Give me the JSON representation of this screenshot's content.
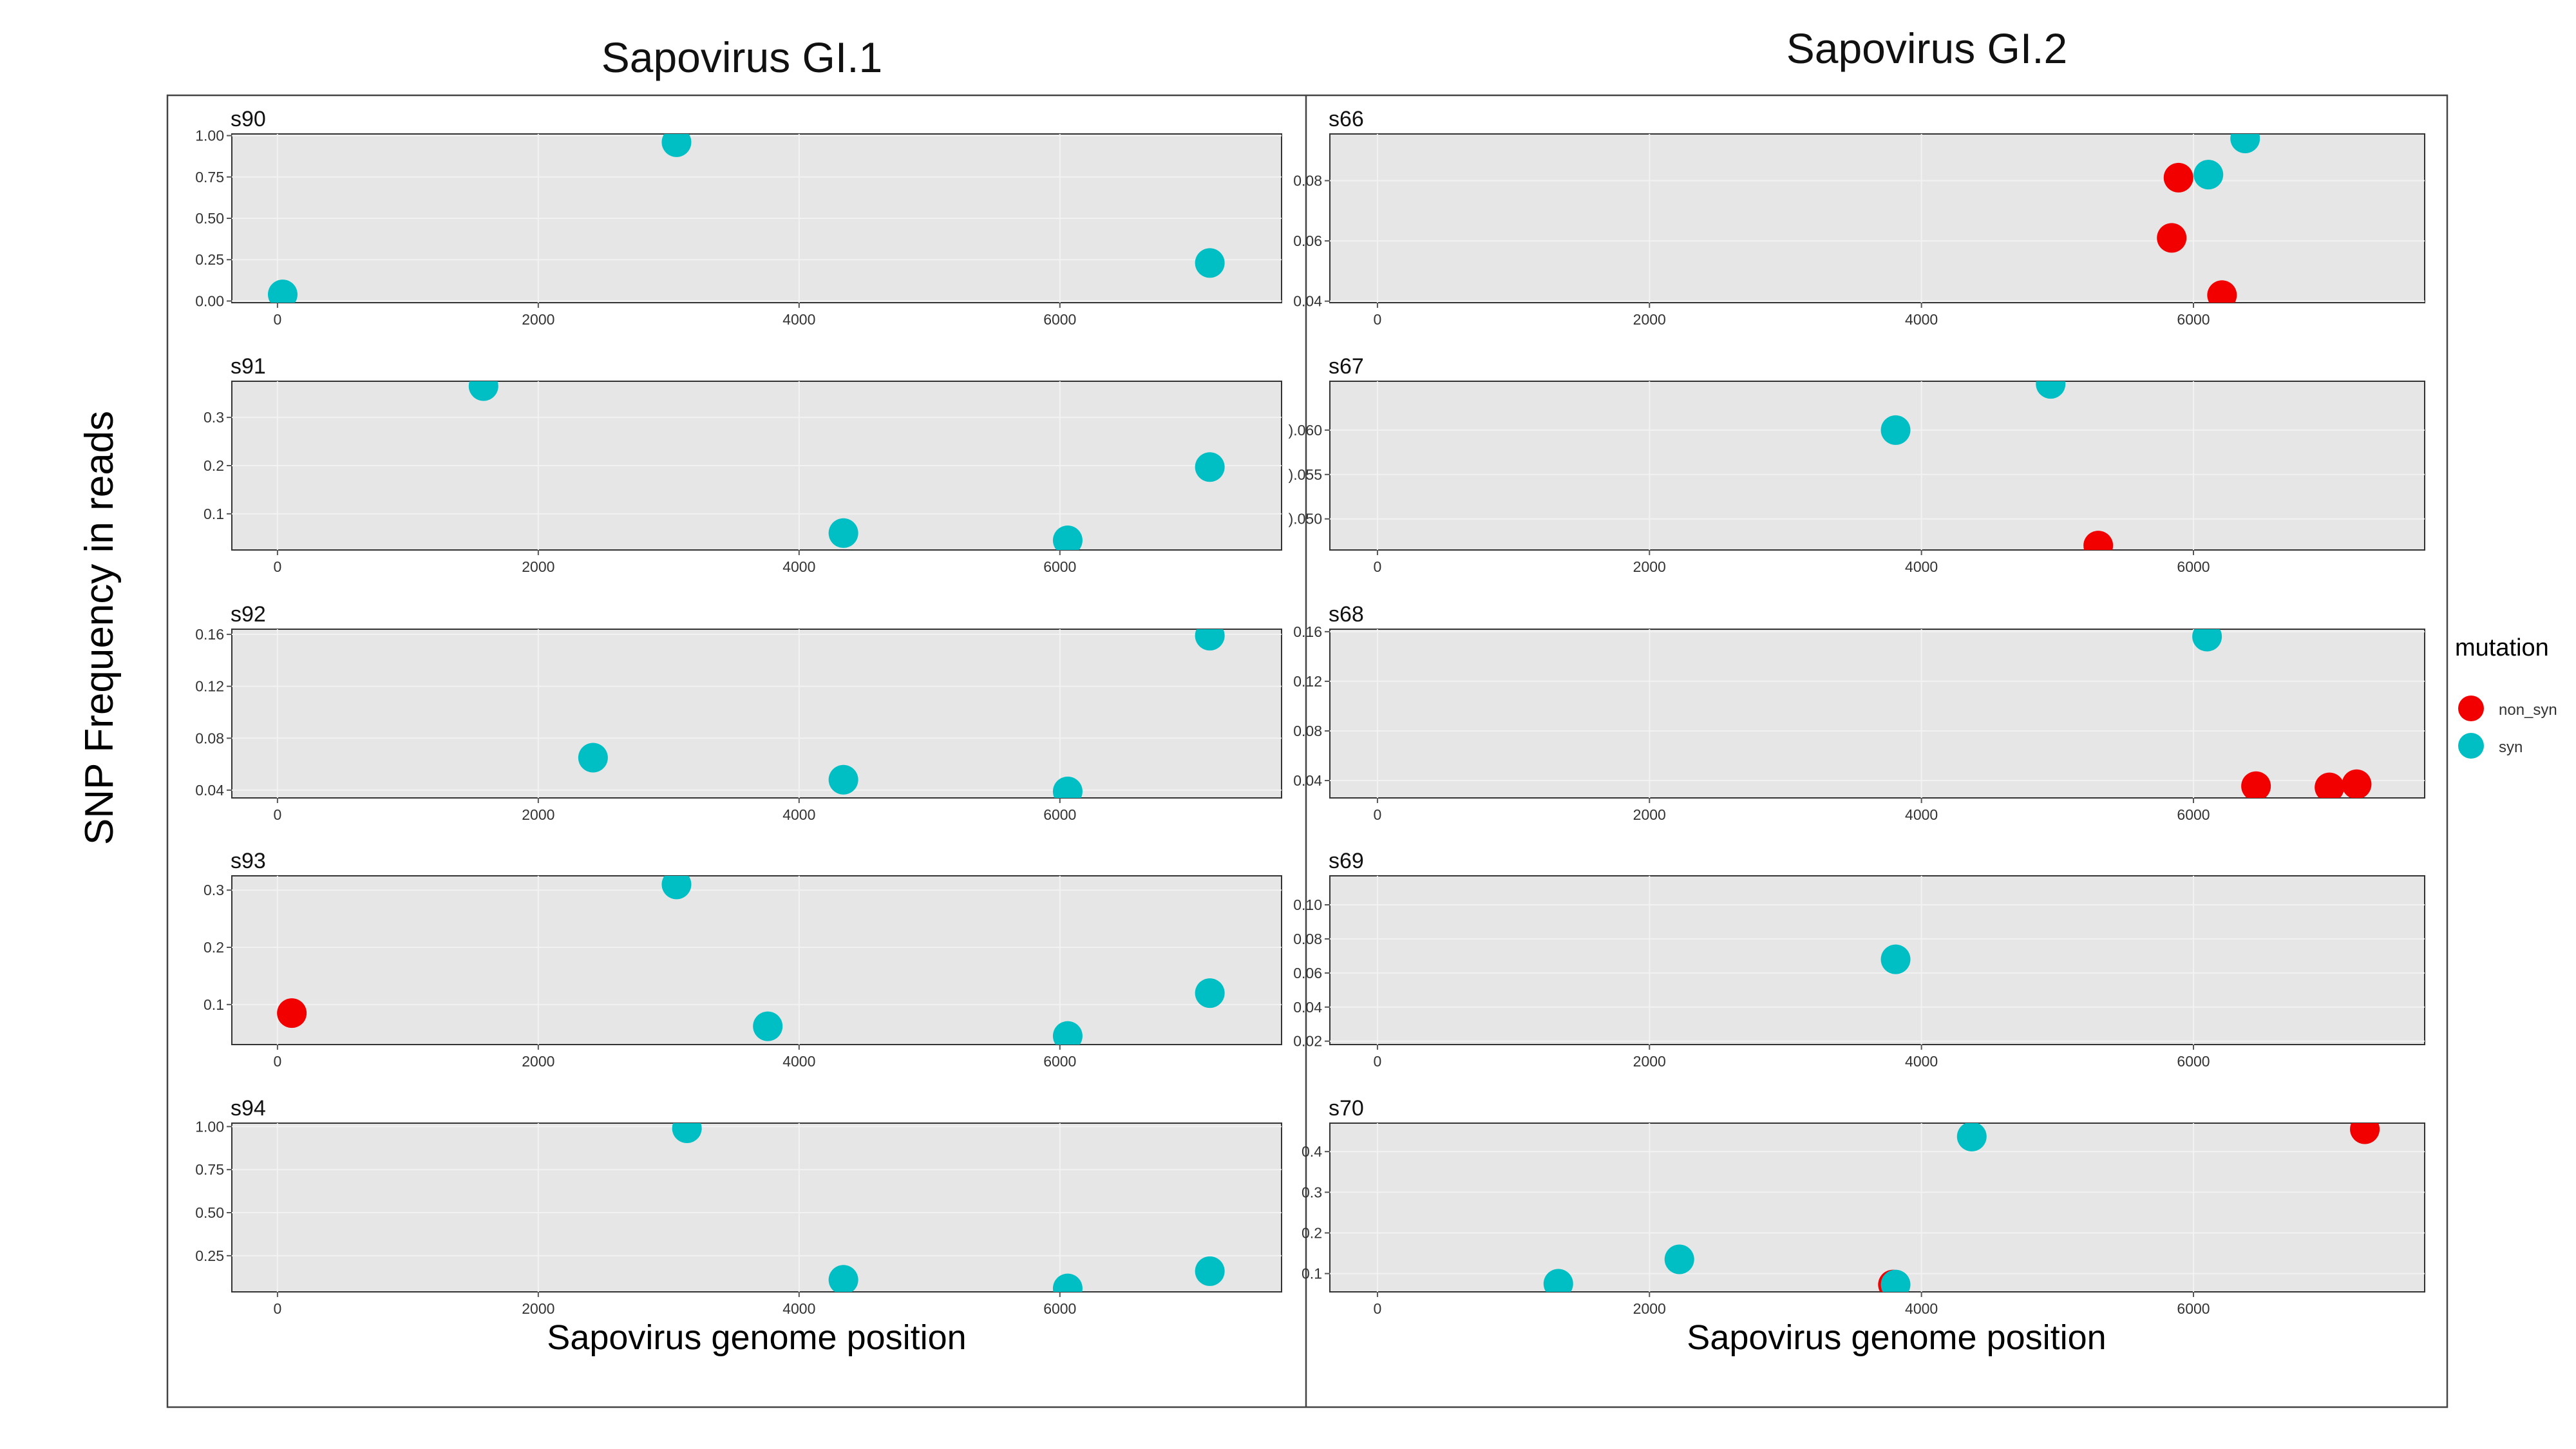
{
  "figure": {
    "ylabel": "SNP Frequency in reads",
    "left_title": "Sapovirus GI.1",
    "right_title": "Sapovirus GI.2",
    "xlabel_left": "Sapovirus genome position",
    "xlabel_right": "Sapovirus genome position",
    "legend": {
      "title": "mutation",
      "items": [
        {
          "label": "non_syn",
          "color": "#f20000"
        },
        {
          "label": "syn",
          "color": "#00bfc4"
        }
      ]
    }
  },
  "colors": {
    "non_syn": "#f20000",
    "syn": "#00bfc4",
    "panel_bg": "#e6e6e6",
    "grid": "#f2f2f2"
  },
  "chart_data": [
    {
      "type": "scatter",
      "title": "s90",
      "xlim": [
        -350,
        7700
      ],
      "ylim": [
        -0.01,
        1.01
      ],
      "xticks": [
        0,
        2000,
        4000,
        6000
      ],
      "yticks": [
        0,
        0.25,
        0.5,
        0.75,
        1.0
      ],
      "ytick_labels": [
        "0.00",
        "0.25",
        "0.50",
        "0.75",
        "1.00"
      ],
      "points": [
        {
          "x": 40,
          "y": 0.04,
          "mutation": "syn"
        },
        {
          "x": 3060,
          "y": 0.96,
          "mutation": "syn"
        },
        {
          "x": 7150,
          "y": 0.23,
          "mutation": "syn"
        }
      ]
    },
    {
      "type": "scatter",
      "title": "s91",
      "xlim": [
        -350,
        7700
      ],
      "ylim": [
        0.025,
        0.375
      ],
      "xticks": [
        0,
        2000,
        4000,
        6000
      ],
      "yticks": [
        0.1,
        0.2,
        0.3
      ],
      "ytick_labels": [
        "0.1",
        "0.2",
        "0.3"
      ],
      "points": [
        {
          "x": 1580,
          "y": 0.365,
          "mutation": "syn"
        },
        {
          "x": 4340,
          "y": 0.06,
          "mutation": "syn"
        },
        {
          "x": 6060,
          "y": 0.045,
          "mutation": "syn"
        },
        {
          "x": 7150,
          "y": 0.197,
          "mutation": "syn"
        }
      ]
    },
    {
      "type": "scatter",
      "title": "s92",
      "xlim": [
        -350,
        7700
      ],
      "ylim": [
        0.034,
        0.164
      ],
      "xticks": [
        0,
        2000,
        4000,
        6000
      ],
      "yticks": [
        0.04,
        0.08,
        0.12,
        0.16
      ],
      "ytick_labels": [
        "0.04",
        "0.08",
        "0.12",
        "0.16"
      ],
      "points": [
        {
          "x": 2420,
          "y": 0.065,
          "mutation": "syn"
        },
        {
          "x": 4340,
          "y": 0.048,
          "mutation": "syn"
        },
        {
          "x": 6060,
          "y": 0.039,
          "mutation": "syn"
        },
        {
          "x": 7150,
          "y": 0.159,
          "mutation": "syn"
        }
      ]
    },
    {
      "type": "scatter",
      "title": "s93",
      "xlim": [
        -350,
        7700
      ],
      "ylim": [
        0.03,
        0.325
      ],
      "xticks": [
        0,
        2000,
        4000,
        6000
      ],
      "yticks": [
        0.1,
        0.2,
        0.3
      ],
      "ytick_labels": [
        "0.1",
        "0.2",
        "0.3"
      ],
      "points": [
        {
          "x": 110,
          "y": 0.085,
          "mutation": "non_syn"
        },
        {
          "x": 3060,
          "y": 0.31,
          "mutation": "syn"
        },
        {
          "x": 3760,
          "y": 0.062,
          "mutation": "syn"
        },
        {
          "x": 6060,
          "y": 0.045,
          "mutation": "syn"
        },
        {
          "x": 7150,
          "y": 0.12,
          "mutation": "syn"
        }
      ]
    },
    {
      "type": "scatter",
      "title": "s94",
      "xlim": [
        -350,
        7700
      ],
      "ylim": [
        0.04,
        1.02
      ],
      "xticks": [
        0,
        2000,
        4000,
        6000
      ],
      "yticks": [
        0.25,
        0.5,
        0.75,
        1.0
      ],
      "ytick_labels": [
        "0.25",
        "0.50",
        "0.75",
        "1.00"
      ],
      "points": [
        {
          "x": 3140,
          "y": 0.99,
          "mutation": "syn"
        },
        {
          "x": 4340,
          "y": 0.11,
          "mutation": "syn"
        },
        {
          "x": 6060,
          "y": 0.06,
          "mutation": "syn"
        },
        {
          "x": 7150,
          "y": 0.16,
          "mutation": "syn"
        }
      ]
    },
    {
      "type": "scatter",
      "title": "s66",
      "xlim": [
        -350,
        7700
      ],
      "ylim": [
        0.0395,
        0.0955
      ],
      "xticks": [
        0,
        2000,
        4000,
        6000
      ],
      "yticks": [
        0.04,
        0.06,
        0.08
      ],
      "ytick_labels": [
        "0.04",
        "0.06",
        "0.08"
      ],
      "points": [
        {
          "x": 5890,
          "y": 0.081,
          "mutation": "non_syn"
        },
        {
          "x": 5840,
          "y": 0.061,
          "mutation": "non_syn"
        },
        {
          "x": 6210,
          "y": 0.042,
          "mutation": "non_syn"
        },
        {
          "x": 6110,
          "y": 0.082,
          "mutation": "syn"
        },
        {
          "x": 6380,
          "y": 0.094,
          "mutation": "syn"
        }
      ]
    },
    {
      "type": "scatter",
      "title": "s67",
      "xlim": [
        -350,
        7700
      ],
      "ylim": [
        0.0465,
        0.0655
      ],
      "xticks": [
        0,
        2000,
        4000,
        6000
      ],
      "yticks": [
        0.05,
        0.055,
        0.06
      ],
      "ytick_labels": [
        ").050",
        ").055",
        ").060"
      ],
      "points": [
        {
          "x": 5300,
          "y": 0.047,
          "mutation": "non_syn"
        },
        {
          "x": 3810,
          "y": 0.06,
          "mutation": "syn"
        },
        {
          "x": 4950,
          "y": 0.0652,
          "mutation": "syn"
        }
      ]
    },
    {
      "type": "scatter",
      "title": "s68",
      "xlim": [
        -350,
        7700
      ],
      "ylim": [
        0.026,
        0.162
      ],
      "xticks": [
        0,
        2000,
        4000,
        6000
      ],
      "yticks": [
        0.04,
        0.08,
        0.12,
        0.16
      ],
      "ytick_labels": [
        "0.04",
        "0.08",
        "0.12",
        "0.16"
      ],
      "points": [
        {
          "x": 6100,
          "y": 0.156,
          "mutation": "syn"
        },
        {
          "x": 6460,
          "y": 0.0355,
          "mutation": "non_syn"
        },
        {
          "x": 7000,
          "y": 0.0345,
          "mutation": "non_syn"
        },
        {
          "x": 7200,
          "y": 0.037,
          "mutation": "non_syn"
        }
      ]
    },
    {
      "type": "scatter",
      "title": "s69",
      "xlim": [
        -350,
        7700
      ],
      "ylim": [
        0.018,
        0.117
      ],
      "xticks": [
        0,
        2000,
        4000,
        6000
      ],
      "yticks": [
        0.02,
        0.04,
        0.06,
        0.08,
        0.1
      ],
      "ytick_labels": [
        "0.02",
        "0.04",
        "0.06",
        "0.08",
        "0.10"
      ],
      "points": [
        {
          "x": 3810,
          "y": 0.068,
          "mutation": "syn"
        }
      ]
    },
    {
      "type": "scatter",
      "title": "s70",
      "xlim": [
        -350,
        7700
      ],
      "ylim": [
        0.055,
        0.47
      ],
      "xticks": [
        0,
        2000,
        4000,
        6000
      ],
      "yticks": [
        0.1,
        0.2,
        0.3,
        0.4
      ],
      "ytick_labels": [
        "0.1",
        "0.2",
        "0.3",
        "0.4"
      ],
      "points": [
        {
          "x": 1330,
          "y": 0.075,
          "mutation": "syn"
        },
        {
          "x": 2220,
          "y": 0.135,
          "mutation": "syn"
        },
        {
          "x": 3790,
          "y": 0.073,
          "mutation": "non_syn"
        },
        {
          "x": 3810,
          "y": 0.073,
          "mutation": "syn"
        },
        {
          "x": 4370,
          "y": 0.437,
          "mutation": "syn"
        },
        {
          "x": 7260,
          "y": 0.455,
          "mutation": "non_syn"
        }
      ]
    }
  ]
}
